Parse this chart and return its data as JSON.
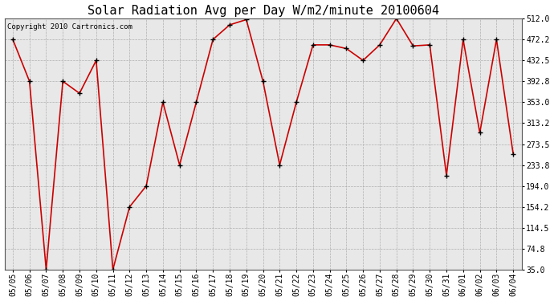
{
  "title": "Solar Radiation Avg per Day W/m2/minute 20100604",
  "copyright_text": "Copyright 2010 Cartronics.com",
  "line_color": "#cc0000",
  "marker_color": "#000000",
  "bg_color": "#ffffff",
  "plot_bg_color": "#e8e8e8",
  "grid_color": "#aaaaaa",
  "dates": [
    "05/05",
    "05/06",
    "05/07",
    "05/08",
    "05/09",
    "05/10",
    "05/11",
    "05/12",
    "05/13",
    "05/14",
    "05/15",
    "05/16",
    "05/17",
    "05/18",
    "05/19",
    "05/20",
    "05/21",
    "05/22",
    "05/23",
    "05/24",
    "05/25",
    "05/26",
    "05/27",
    "05/28",
    "05/29",
    "05/30",
    "05/31",
    "06/01",
    "06/02",
    "06/03",
    "06/04"
  ],
  "values": [
    472.2,
    392.8,
    35.0,
    392.8,
    370.0,
    432.5,
    35.0,
    154.2,
    194.0,
    353.0,
    233.8,
    353.0,
    472.2,
    500.0,
    510.0,
    392.8,
    233.8,
    353.0,
    462.0,
    462.0,
    455.0,
    432.5,
    462.0,
    512.0,
    460.0,
    462.0,
    214.0,
    472.2,
    295.0,
    472.2,
    255.0
  ],
  "yticks": [
    35.0,
    74.8,
    114.5,
    154.2,
    194.0,
    233.8,
    273.5,
    313.2,
    353.0,
    392.8,
    432.5,
    472.2,
    512.0
  ],
  "ylim": [
    35.0,
    512.0
  ],
  "title_fontsize": 11,
  "tick_fontsize": 7,
  "copyright_fontsize": 6.5
}
